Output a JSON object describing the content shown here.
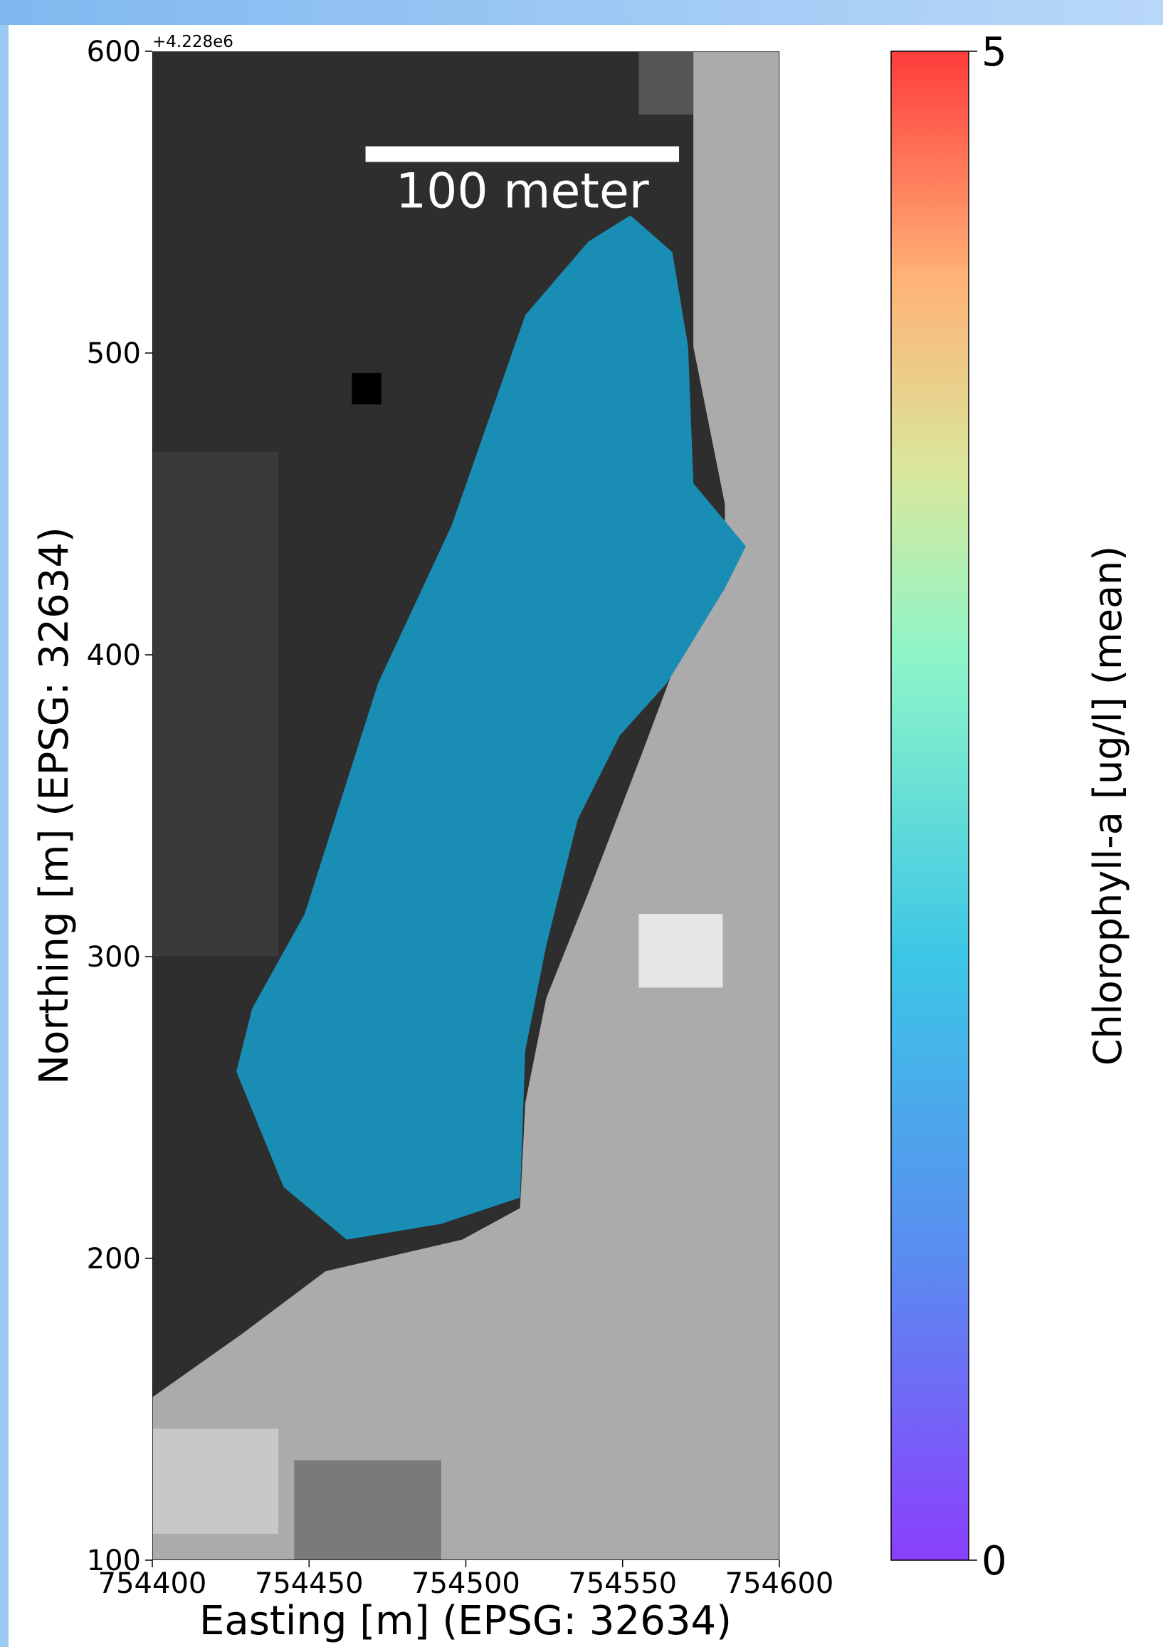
{
  "chart_data": {
    "type": "map",
    "xlabel": "Easting [m] (EPSG: 32634)",
    "ylabel": "Northing [m] (EPSG: 32634)",
    "offset_label": "+4.228e6",
    "xlim": [
      754400,
      754600
    ],
    "xticks": [
      754400,
      754450,
      754500,
      754550,
      754600
    ],
    "ylim": [
      100,
      600
    ],
    "yticks": [
      100,
      200,
      300,
      400,
      500,
      600
    ],
    "scale_bar": {
      "label": "100 meter",
      "length": 100
    },
    "colorbar": {
      "label": "Chlorophyll-a [ug/l] (mean)",
      "lim": [
        0,
        5
      ],
      "ticks": [
        0,
        5
      ]
    }
  }
}
